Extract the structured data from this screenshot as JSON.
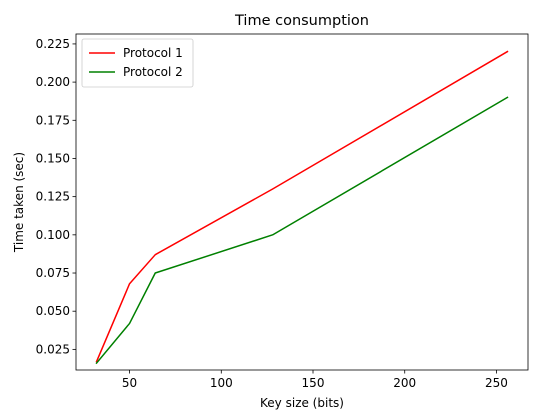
{
  "chart_data": {
    "type": "line",
    "title": "Time consumption",
    "xlabel": "Key size (bits)",
    "ylabel": "Time taken (sec)",
    "xlim": [
      20.8,
      267.2
    ],
    "ylim": [
      0.0115,
      0.2315
    ],
    "xticks": [
      50,
      100,
      150,
      200,
      250
    ],
    "xtick_labels": [
      "50",
      "100",
      "150",
      "200",
      "250"
    ],
    "yticks": [
      0.025,
      0.05,
      0.075,
      0.1,
      0.125,
      0.15,
      0.175,
      0.2,
      0.225
    ],
    "ytick_labels": [
      "0.025",
      "0.050",
      "0.075",
      "0.100",
      "0.125",
      "0.150",
      "0.175",
      "0.200",
      "0.225"
    ],
    "grid": false,
    "legend_position": "top-left",
    "series": [
      {
        "name": "Protocol 1",
        "color": "#ff0000",
        "x": [
          32,
          50,
          64,
          128,
          256
        ],
        "y": [
          0.017,
          0.068,
          0.087,
          0.13,
          0.22
        ]
      },
      {
        "name": "Protocol 2",
        "color": "#008000",
        "x": [
          32,
          50,
          64,
          128,
          256
        ],
        "y": [
          0.016,
          0.042,
          0.075,
          0.1,
          0.19
        ]
      }
    ]
  }
}
